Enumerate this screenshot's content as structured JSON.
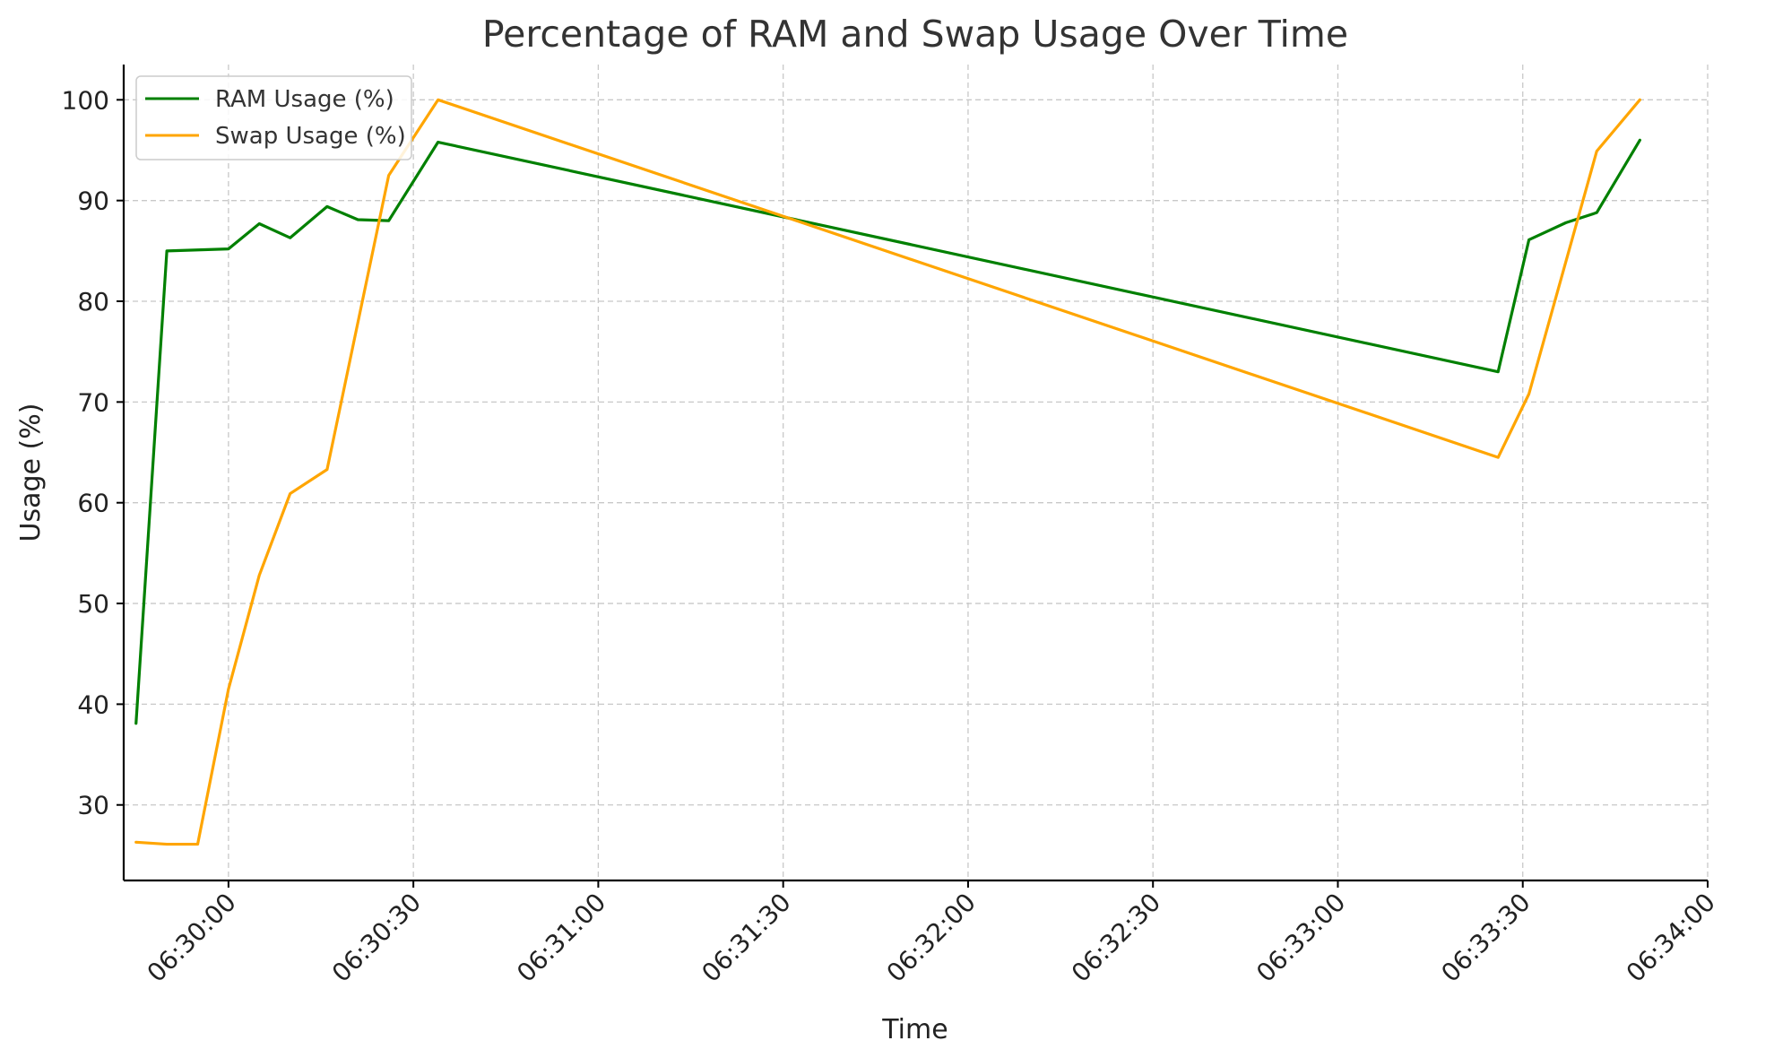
{
  "chart_data": {
    "type": "line",
    "title": "Percentage of RAM and Swap Usage Over Time",
    "xlabel": "Time",
    "ylabel": "Usage (%)",
    "x_axis": {
      "type": "time",
      "min": "06:29:43",
      "max": "06:34:00",
      "ticks": [
        "06:30:00",
        "06:30:30",
        "06:31:00",
        "06:31:30",
        "06:32:00",
        "06:32:30",
        "06:33:00",
        "06:33:30",
        "06:34:00"
      ]
    },
    "y_axis": {
      "min": 22.5,
      "max": 103.5,
      "ticks": [
        30,
        40,
        50,
        60,
        70,
        80,
        90,
        100
      ]
    },
    "grid": true,
    "legend_position": "top-left",
    "series": [
      {
        "name": "RAM Usage (%)",
        "color": "#008000",
        "points": [
          {
            "x": "06:29:45",
            "y": 38.1
          },
          {
            "x": "06:29:50",
            "y": 85.0
          },
          {
            "x": "06:30:00",
            "y": 85.2
          },
          {
            "x": "06:30:05",
            "y": 87.7
          },
          {
            "x": "06:30:10",
            "y": 86.3
          },
          {
            "x": "06:30:16",
            "y": 89.4
          },
          {
            "x": "06:30:21",
            "y": 88.1
          },
          {
            "x": "06:30:26",
            "y": 88.0
          },
          {
            "x": "06:30:34",
            "y": 95.8
          },
          {
            "x": "06:33:26",
            "y": 73.0
          },
          {
            "x": "06:33:31",
            "y": 86.1
          },
          {
            "x": "06:33:37",
            "y": 87.8
          },
          {
            "x": "06:33:42",
            "y": 88.8
          },
          {
            "x": "06:33:49",
            "y": 96.0
          }
        ]
      },
      {
        "name": "Swap Usage (%)",
        "color": "#FFA500",
        "points": [
          {
            "x": "06:29:45",
            "y": 26.3
          },
          {
            "x": "06:29:50",
            "y": 26.1
          },
          {
            "x": "06:29:55",
            "y": 26.1
          },
          {
            "x": "06:30:00",
            "y": 41.5
          },
          {
            "x": "06:30:05",
            "y": 52.8
          },
          {
            "x": "06:30:10",
            "y": 60.9
          },
          {
            "x": "06:30:16",
            "y": 63.3
          },
          {
            "x": "06:30:26",
            "y": 92.5
          },
          {
            "x": "06:30:34",
            "y": 100.0
          },
          {
            "x": "06:33:26",
            "y": 64.5
          },
          {
            "x": "06:33:31",
            "y": 70.8
          },
          {
            "x": "06:33:42",
            "y": 94.9
          },
          {
            "x": "06:33:49",
            "y": 100.0
          }
        ]
      }
    ]
  }
}
